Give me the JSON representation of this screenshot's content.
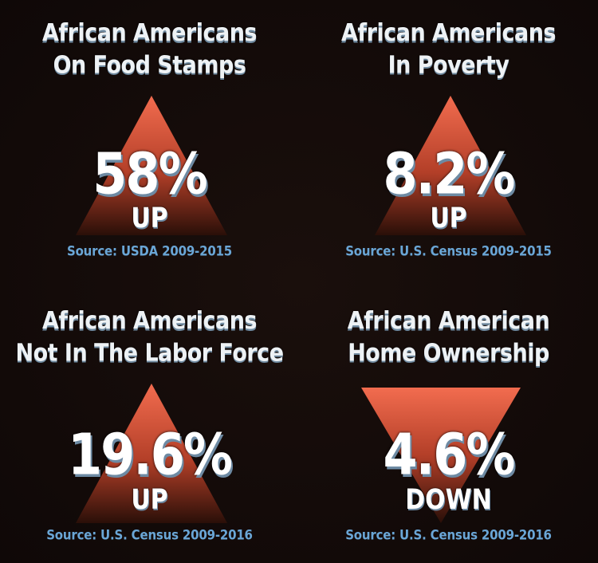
{
  "colors": {
    "background": "#120a08",
    "triangle_top": "#f26c4f",
    "triangle_bottom": "#2a0f08",
    "title_text": "#eef2f5",
    "source_text": "#6aa6d6"
  },
  "stats": [
    {
      "title_line1": "African Americans",
      "title_line2": "On Food Stamps",
      "value": "58%",
      "direction": "UP",
      "direction_icon": "triangle-up-icon",
      "source": "Source: USDA 2009-2015"
    },
    {
      "title_line1": "African Americans",
      "title_line2": "In Poverty",
      "value": "8.2%",
      "direction": "UP",
      "direction_icon": "triangle-up-icon",
      "source": "Source: U.S. Census 2009-2015"
    },
    {
      "title_line1": "African Americans",
      "title_line2": "Not In The Labor Force",
      "value": "19.6%",
      "direction": "UP",
      "direction_icon": "triangle-up-icon",
      "source": "Source: U.S. Census 2009-2016"
    },
    {
      "title_line1": "African American",
      "title_line2": "Home Ownership",
      "value": "4.6%",
      "direction": "DOWN",
      "direction_icon": "triangle-down-icon",
      "source": "Source: U.S. Census 2009-2016"
    }
  ]
}
